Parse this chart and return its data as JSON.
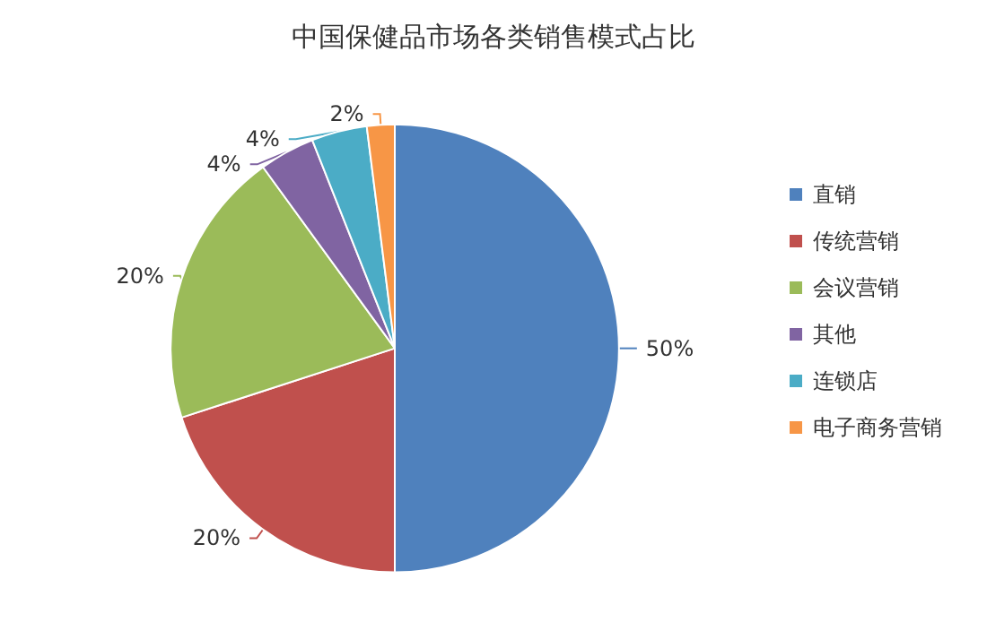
{
  "chart_data": {
    "type": "pie",
    "title": "中国保健品市场各类销售模式占比",
    "categories": [
      "直销",
      "传统营销",
      "会议营销",
      "其他",
      "连锁店",
      "电子商务营销"
    ],
    "values": [
      50,
      20,
      20,
      4,
      4,
      2
    ],
    "value_labels": [
      "50%",
      "20%",
      "20%",
      "4%",
      "4%",
      "2%"
    ],
    "colors": [
      "#4f81bd",
      "#c0504d",
      "#9bbb59",
      "#8064a2",
      "#4bacc6",
      "#f79646"
    ],
    "legend": "right"
  }
}
